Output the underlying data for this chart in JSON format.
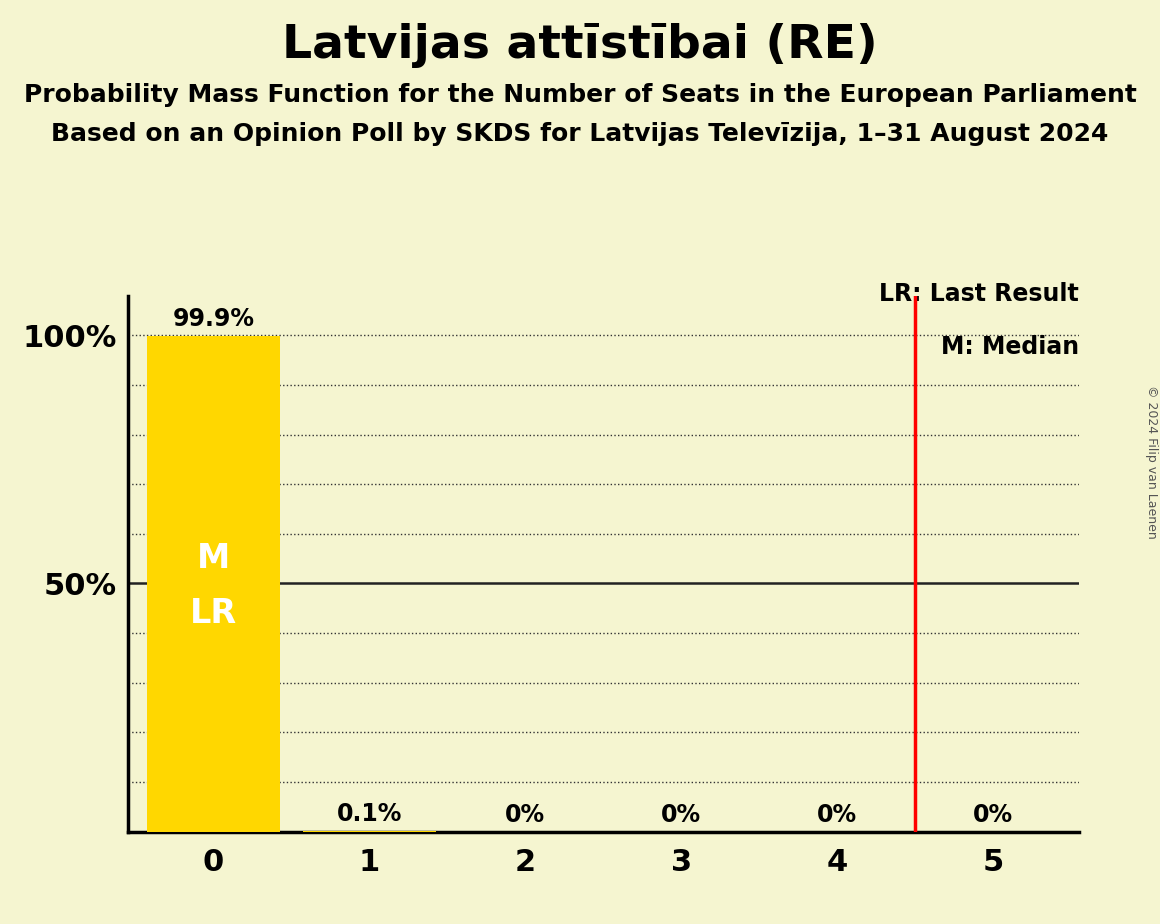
{
  "title": "Latvijas attīstībai (RE)",
  "subtitle1": "Probability Mass Function for the Number of Seats in the European Parliament",
  "subtitle2": "Based on an Opinion Poll by SKDS for Latvijas Televīzija, 1–31 August 2024",
  "copyright": "© 2024 Filip van Laenen",
  "seats": [
    0,
    1,
    2,
    3,
    4,
    5
  ],
  "probabilities": [
    99.9,
    0.1,
    0.0,
    0.0,
    0.0,
    0.0
  ],
  "bar_color": "#FFD700",
  "last_result": 4.5,
  "median": 0,
  "background_color": "#F5F5D0",
  "ytick_show_values": [
    50,
    100
  ],
  "legend_lr": "LR: Last Result",
  "legend_m": "M: Median",
  "bar_label_fontsize": 17,
  "bar_width": 0.85,
  "lr_color": "#FF0000",
  "label_inside_color": "#FFFFFF",
  "label_outside_color": "#000000",
  "title_fontsize": 34,
  "subtitle_fontsize": 18,
  "tick_fontsize": 22,
  "legend_fontsize": 17,
  "copyright_fontsize": 9,
  "ml_fontsize": 24
}
